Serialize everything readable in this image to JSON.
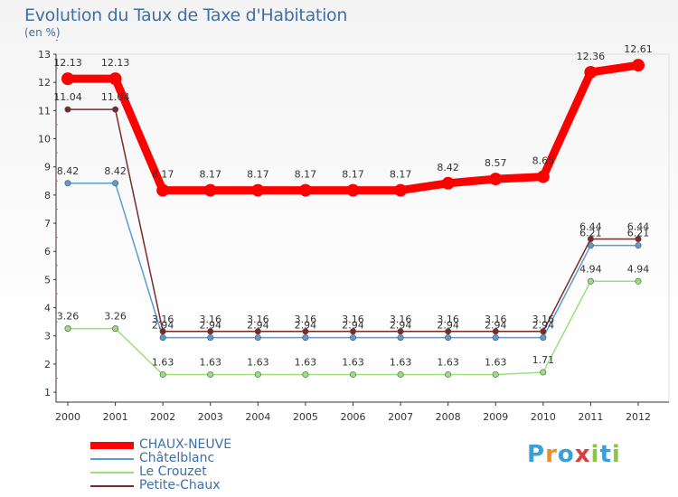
{
  "title": "Evolution du Taux de Taxe d'Habitation",
  "subtitle": "(en %)",
  "logo": {
    "letters": [
      "P",
      "r",
      "o",
      "x",
      "i",
      "t",
      "i"
    ],
    "colors": [
      "#3aa0d8",
      "#f28c1e",
      "#3aa0d8",
      "#e03b3b",
      "#8cc63e",
      "#3aa0d8",
      "#8cc63e"
    ]
  },
  "chart_data": {
    "type": "line",
    "x": [
      "2000",
      "2001",
      "2002",
      "2003",
      "2004",
      "2005",
      "2006",
      "2007",
      "2008",
      "2009",
      "2010",
      "2011",
      "2012"
    ],
    "ylim": [
      1,
      13
    ],
    "yticks": [
      "1",
      "2",
      "3",
      "4",
      "5",
      "6",
      "7",
      "8",
      "9",
      "10",
      "11",
      "12",
      "13"
    ],
    "grid": false,
    "legend_position": "bottom-left",
    "series": [
      {
        "name": "CHAUX-NEUVE",
        "color": "#ff0000",
        "values": [
          12.13,
          12.13,
          8.17,
          8.17,
          8.17,
          8.17,
          8.17,
          8.17,
          8.42,
          8.57,
          8.65,
          12.36,
          12.61
        ],
        "labels": [
          "12.13",
          "12.13",
          "8.17",
          "8.17",
          "8.17",
          "8.17",
          "8.17",
          "8.17",
          "8.42",
          "8.57",
          "8.65",
          "12.36",
          "12.61"
        ]
      },
      {
        "name": "Châtelblanc",
        "color": "#5b9bd5",
        "values": [
          8.42,
          8.42,
          2.94,
          2.94,
          2.94,
          2.94,
          2.94,
          2.94,
          2.94,
          2.94,
          2.94,
          6.21,
          6.21
        ],
        "labels": [
          "8.42",
          "8.42",
          "2.94",
          "2.94",
          "2.94",
          "2.94",
          "2.94",
          "2.94",
          "2.94",
          "2.94",
          "2.94",
          "6.21",
          "6.21"
        ]
      },
      {
        "name": "Le Crouzet",
        "color": "#99e07a",
        "values": [
          3.26,
          3.26,
          1.63,
          1.63,
          1.63,
          1.63,
          1.63,
          1.63,
          1.63,
          1.63,
          1.71,
          4.94,
          4.94
        ],
        "labels": [
          "3.26",
          "3.26",
          "1.63",
          "1.63",
          "1.63",
          "1.63",
          "1.63",
          "1.63",
          "1.63",
          "1.63",
          "1.71",
          "4.94",
          "4.94"
        ]
      },
      {
        "name": "Petite-Chaux",
        "color": "#7a2a2a",
        "values": [
          11.04,
          11.04,
          3.16,
          3.16,
          3.16,
          3.16,
          3.16,
          3.16,
          3.16,
          3.16,
          3.16,
          6.44,
          6.44
        ],
        "labels": [
          "11.04",
          "11.04",
          "3.16",
          "3.16",
          "3.16",
          "3.16",
          "3.16",
          "3.16",
          "3.16",
          "3.16",
          "3.16",
          "6.44",
          "6.44"
        ]
      }
    ]
  }
}
